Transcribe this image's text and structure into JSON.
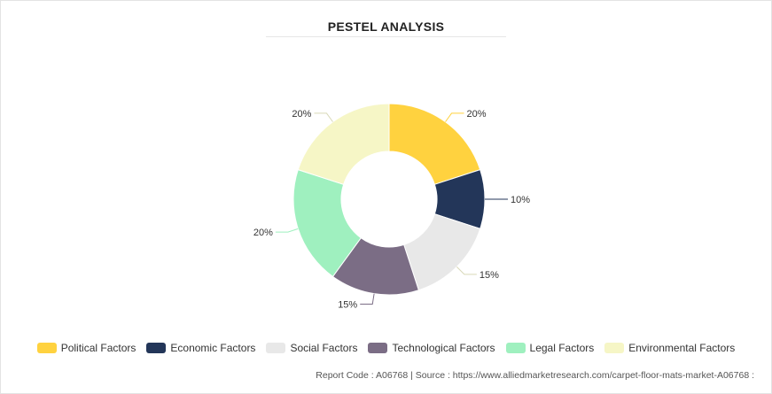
{
  "title": "PESTEL ANALYSIS",
  "chart_data": {
    "type": "pie",
    "donut": true,
    "categories": [
      "Political Factors",
      "Economic Factors",
      "Social Factors",
      "Technological Factors",
      "Legal Factors",
      "Environmental Factors"
    ],
    "values": [
      20,
      10,
      15,
      15,
      20,
      20
    ],
    "labels": [
      "20%",
      "10%",
      "15%",
      "15%",
      "20%",
      "20%"
    ],
    "colors": [
      "#ffd23f",
      "#233659",
      "#e8e8e8",
      "#7b6d85",
      "#9ff0bf",
      "#f6f6c6"
    ],
    "legend": "bottom"
  },
  "legend": [
    {
      "label": "Political Factors",
      "color": "#ffd23f"
    },
    {
      "label": "Economic Factors",
      "color": "#233659"
    },
    {
      "label": "Social Factors",
      "color": "#e8e8e8"
    },
    {
      "label": "Technological Factors",
      "color": "#7b6d85"
    },
    {
      "label": "Legal Factors",
      "color": "#9ff0bf"
    },
    {
      "label": "Environmental Factors",
      "color": "#f6f6c6"
    }
  ],
  "footer": {
    "text": "Report Code : A06768  |  Source : https://www.alliedmarketresearch.com/carpet-floor-mats-market-A06768 :"
  }
}
